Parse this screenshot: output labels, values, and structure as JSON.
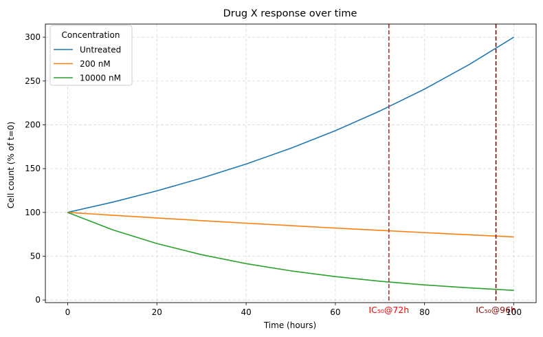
{
  "chart_data": {
    "type": "line",
    "title": "Drug X response over time",
    "xlabel": "Time (hours)",
    "ylabel": "Cell count (% of t=0)",
    "xlim": [
      -5,
      105
    ],
    "ylim": [
      -3,
      315
    ],
    "xticks": [
      0,
      20,
      40,
      60,
      80,
      100
    ],
    "yticks": [
      0,
      50,
      100,
      150,
      200,
      250,
      300
    ],
    "grid": true,
    "legend": {
      "title": "Concentration",
      "placement": "top-left"
    },
    "series": [
      {
        "name": "Untreated",
        "color": "#1f77b4",
        "x": [
          0,
          10,
          20,
          30,
          40,
          50,
          60,
          70,
          80,
          90,
          100
        ],
        "y": [
          100,
          111.6,
          124.6,
          139.1,
          155.2,
          173.2,
          193.3,
          215.8,
          240.8,
          268.8,
          300.0
        ]
      },
      {
        "name": "200 nM",
        "color": "#ff7f0e",
        "x": [
          0,
          10,
          20,
          30,
          40,
          50,
          60,
          70,
          80,
          90,
          100
        ],
        "y": [
          100,
          96.8,
          93.6,
          90.6,
          87.7,
          84.9,
          82.1,
          79.5,
          76.9,
          74.4,
          72.0
        ]
      },
      {
        "name": "10000 nM",
        "color": "#2ca02c",
        "x": [
          0,
          10,
          20,
          30,
          40,
          50,
          60,
          70,
          80,
          90,
          100
        ],
        "y": [
          100,
          80.2,
          64.4,
          51.7,
          41.5,
          33.3,
          26.7,
          21.4,
          17.2,
          13.8,
          11.0
        ]
      }
    ],
    "vlines": [
      {
        "x": 72,
        "label": "IC₅₀@72h",
        "color": "#d62728",
        "label_color": "#ff0000"
      },
      {
        "x": 96,
        "label": "IC₅₀@96h",
        "color": "#8b0000",
        "label_color": "#8b0000"
      }
    ]
  }
}
